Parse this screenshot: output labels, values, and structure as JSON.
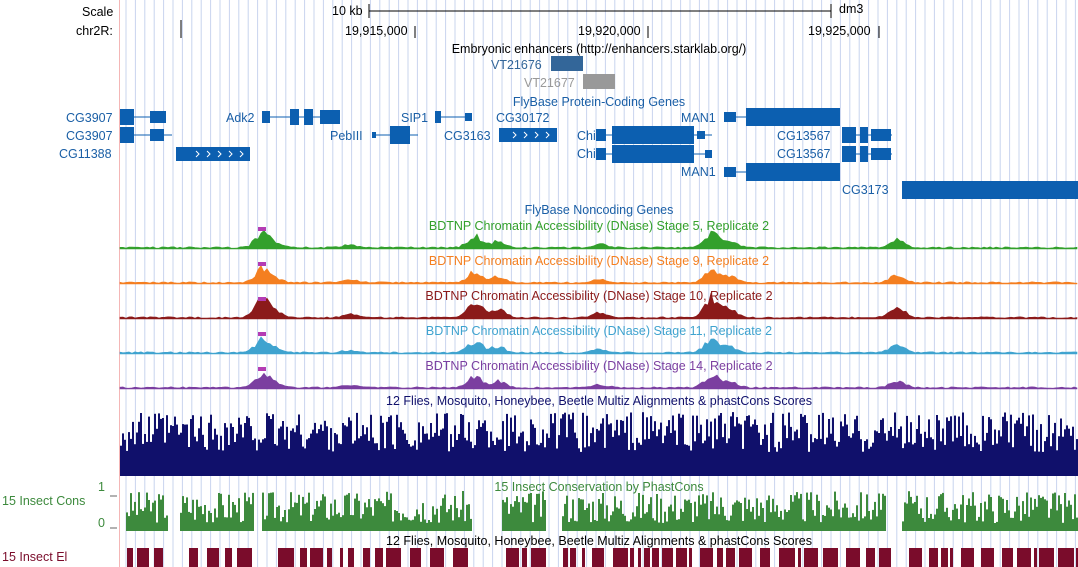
{
  "ruler": {
    "scale_label": "Scale",
    "chrom_label": "chr2R:",
    "scalebar_label": "10 kb",
    "assembly": "dm3",
    "positions": [
      "19,915,000",
      "19,920,000",
      "19,925,000"
    ]
  },
  "tracks": {
    "enhancers": {
      "title": "Embryonic enhancers (http://enhancers.starklab.org/)",
      "items": [
        {
          "name": "VT21676",
          "color": "#336699"
        },
        {
          "name": "VT21677",
          "color": "#999999"
        }
      ]
    },
    "coding": {
      "title": "FlyBase Protein-Coding Genes",
      "genes": [
        "CG3907",
        "CG3907",
        "CG11388",
        "Adk2",
        "PebIII",
        "SIP1",
        "CG3163",
        "CG30172",
        "Chi",
        "Chi",
        "MAN1",
        "MAN1",
        "CG13567",
        "CG13567",
        "CG3173"
      ]
    },
    "noncoding": {
      "title": "FlyBase Noncoding Genes"
    },
    "dnase": [
      {
        "title": "BDTNP Chromatin Accessibility (DNase) Stage 5, Replicate 2",
        "color": "#33a02c"
      },
      {
        "title": "BDTNP Chromatin Accessibility (DNase) Stage 9, Replicate 2",
        "color": "#f47f20"
      },
      {
        "title": "BDTNP Chromatin Accessibility (DNase) Stage 10, Replicate 2",
        "color": "#8b1a1a"
      },
      {
        "title": "BDTNP Chromatin Accessibility (DNase) Stage 11, Replicate 2",
        "color": "#3fa3cf"
      },
      {
        "title": "BDTNP Chromatin Accessibility (DNase) Stage 14, Replicate 2",
        "color": "#7b3fa0"
      }
    ],
    "multiz": {
      "title": "12 Flies, Mosquito, Honeybee, Beetle Multiz Alignments & phastCons Scores",
      "color": "#10106b"
    },
    "phastcons": {
      "title": "15 Insect Conservation by PhastCons",
      "side_label": "15 Insect Cons",
      "ymax": "1",
      "ymin": "0",
      "color": "#3d8a3d"
    },
    "elements": {
      "title": "12 Flies, Mosquito, Honeybee, Beetle Multiz Alignments & phastCons Scores",
      "side_label": "15 Insect El",
      "color": "#7a0c2b"
    }
  },
  "colors": {
    "gene": "#0c5fb0",
    "gene_label": "#1a5fa6",
    "grid": "#c8d4ee",
    "left_border": "#f4b6b6"
  }
}
